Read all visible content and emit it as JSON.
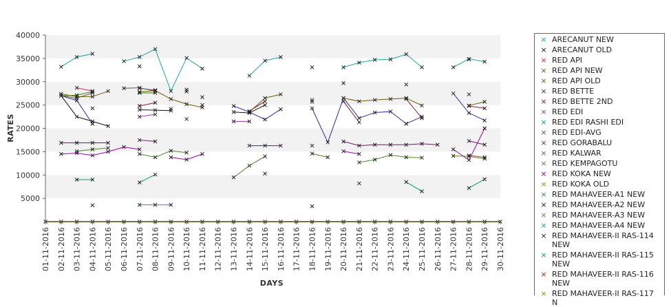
{
  "chart_data": {
    "type": "line",
    "title": "",
    "xlabel": "DAYS",
    "ylabel": "RATES",
    "ylim": [
      0,
      40000
    ],
    "y_ticks": [
      5000,
      10000,
      15000,
      20000,
      25000,
      30000,
      35000,
      40000
    ],
    "grid": "alternating horizontal bands",
    "legend_position": "right",
    "categories": [
      "01-11-2016",
      "02-11-2016",
      "03-11-2016",
      "04-11-2016",
      "05-11-2016",
      "06-11-2016",
      "07-11-2016",
      "08-11-2016",
      "09-11-2016",
      "10-11-2016",
      "11-11-2016",
      "12-11-2016",
      "13-11-2016",
      "14-11-2016",
      "15-11-2016",
      "16-11-2016",
      "17-11-2016",
      "18-11-2016",
      "19-11-2016",
      "20-11-2016",
      "21-11-2016",
      "22-11-2016",
      "23-11-2016",
      "24-11-2016",
      "25-11-2016",
      "26-11-2016",
      "27-11-2016",
      "28-11-2016",
      "29-11-2016",
      "30-11-2016"
    ],
    "series": [
      {
        "name": "ARECANUT NEW",
        "color": "#1aa3a3",
        "values": [
          null,
          33200,
          35300,
          36000,
          null,
          34400,
          35300,
          37000,
          28000,
          35100,
          32800,
          null,
          null,
          31300,
          34500,
          35300,
          null,
          33100,
          null,
          33100,
          34100,
          34700,
          34800,
          35900,
          33100,
          null,
          33100,
          34900,
          34300,
          null
        ]
      },
      {
        "name": "ARECANUT OLD",
        "color": "#111111",
        "values": [
          null,
          27000,
          22500,
          21500,
          20500,
          null,
          24000,
          23900,
          23800,
          null,
          null,
          null,
          23500,
          23300,
          25000,
          null,
          null,
          null,
          null,
          null,
          null,
          null,
          null,
          null,
          null,
          null,
          null,
          null,
          null,
          null
        ]
      },
      {
        "name": "RED API",
        "color": "#d81b60",
        "values": [
          null,
          null,
          28700,
          28000,
          null,
          null,
          28600,
          28200,
          null,
          28300,
          null,
          null,
          null,
          null,
          null,
          null,
          null,
          null,
          null,
          null,
          null,
          null,
          null,
          29400,
          null,
          null,
          null,
          27300,
          null,
          null
        ]
      },
      {
        "name": "RED API NEW",
        "color": "#6b5a00",
        "values": [
          null,
          27400,
          26800,
          26800,
          28000,
          null,
          27800,
          28100,
          26300,
          25200,
          24500,
          null,
          null,
          23500,
          26500,
          27300,
          null,
          26100,
          null,
          26500,
          25800,
          26100,
          26300,
          26500,
          24900,
          null,
          null,
          24900,
          25700,
          null
        ]
      },
      {
        "name": "RED API OLD",
        "color": "#3a7a00",
        "values": [
          null,
          27000,
          27100,
          27900,
          null,
          null,
          27600,
          27600,
          null,
          null,
          null,
          null,
          null,
          null,
          null,
          null,
          null,
          null,
          null,
          null,
          null,
          null,
          null,
          null,
          null,
          null,
          null,
          null,
          null,
          null
        ]
      },
      {
        "name": "RED BETTE",
        "color": "#2a2aa8",
        "values": [
          null,
          27000,
          26000,
          21000,
          null,
          null,
          24800,
          null,
          24200,
          null,
          26700,
          null,
          24800,
          23500,
          21900,
          24100,
          null,
          24300,
          17000,
          26500,
          22200,
          23400,
          23600,
          21000,
          22500,
          null,
          27500,
          23300,
          21700,
          null
        ]
      },
      {
        "name": "RED BETTE 2ND",
        "color": "#8a1c2b",
        "values": [
          null,
          null,
          null,
          24300,
          null,
          null,
          24800,
          25500,
          null,
          null,
          25000,
          null,
          null,
          23700,
          25800,
          null,
          null,
          25700,
          null,
          25800,
          21300,
          null,
          null,
          26300,
          22200,
          null,
          null,
          24800,
          24300,
          null
        ]
      },
      {
        "name": "RED EDI",
        "color": "#9a2fa8",
        "values": [
          null,
          null,
          null,
          21000,
          null,
          null,
          22500,
          23000,
          null,
          22000,
          null,
          null,
          21500,
          21500,
          null,
          null,
          null,
          null,
          null,
          null,
          null,
          null,
          null,
          21000,
          null,
          null,
          null,
          null,
          20000,
          null
        ]
      },
      {
        "name": "RED EDI RASHI EDI",
        "color": "#00a0a0",
        "values": [
          null,
          null,
          null,
          null,
          null,
          null,
          33300,
          null,
          null,
          null,
          null,
          null,
          null,
          null,
          null,
          null,
          null,
          null,
          null,
          29700,
          null,
          null,
          null,
          null,
          null,
          null,
          null,
          34800,
          null,
          null
        ]
      },
      {
        "name": "RED EDI-AVG",
        "color": "#555555",
        "values": [
          null,
          27000,
          26500,
          27600,
          null,
          28600,
          28700,
          28000,
          null,
          27900,
          null,
          null,
          null,
          null,
          null,
          null,
          null,
          null,
          null,
          null,
          null,
          null,
          null,
          null,
          null,
          null,
          null,
          null,
          null,
          null
        ]
      },
      {
        "name": "RED GORABALU",
        "color": "#6a1a60",
        "values": [
          null,
          16900,
          16900,
          16900,
          16900,
          null,
          17500,
          17200,
          null,
          null,
          null,
          null,
          null,
          16300,
          16300,
          16300,
          null,
          16300,
          null,
          17200,
          16300,
          16500,
          16500,
          16500,
          16700,
          16500,
          null,
          17300,
          16500,
          null
        ]
      },
      {
        "name": "RED KALWAR",
        "color": "#a0522d",
        "values": [
          null,
          null,
          null,
          null,
          null,
          null,
          null,
          null,
          null,
          null,
          null,
          null,
          null,
          null,
          null,
          null,
          null,
          null,
          null,
          null,
          null,
          null,
          null,
          null,
          null,
          null,
          null,
          14200,
          13800,
          null
        ]
      },
      {
        "name": "RED KEMPAGOTU",
        "color": "#4b8a2a",
        "values": [
          null,
          null,
          15100,
          15500,
          15800,
          null,
          14500,
          13800,
          15200,
          14800,
          null,
          null,
          9500,
          12000,
          14000,
          null,
          null,
          14600,
          13800,
          null,
          12700,
          13300,
          14300,
          13800,
          13700,
          null,
          14100,
          14000,
          13500,
          null
        ]
      },
      {
        "name": "RED KOKA NEW",
        "color": "#a000a0",
        "values": [
          null,
          14500,
          14700,
          14200,
          15000,
          16000,
          15500,
          null,
          13800,
          13300,
          14500,
          null,
          null,
          null,
          null,
          null,
          null,
          null,
          null,
          15100,
          14500,
          null,
          null,
          null,
          null,
          null,
          15500,
          13200,
          20000,
          null
        ]
      },
      {
        "name": "RED KOKA OLD",
        "color": "#66aa00",
        "values": [
          null,
          null,
          null,
          null,
          null,
          null,
          null,
          null,
          null,
          null,
          null,
          null,
          null,
          null,
          null,
          null,
          null,
          null,
          null,
          null,
          null,
          null,
          null,
          null,
          null,
          null,
          null,
          null,
          null,
          null
        ]
      },
      {
        "name": "RED MAHAVEER-A1 NEW",
        "color": "#2e8b57",
        "values": [
          null,
          null,
          null,
          null,
          null,
          null,
          null,
          null,
          null,
          null,
          null,
          null,
          null,
          null,
          null,
          null,
          null,
          null,
          null,
          null,
          null,
          null,
          null,
          null,
          null,
          null,
          null,
          null,
          null,
          null
        ]
      },
      {
        "name": "RED MAHAVEER-A2 NEW",
        "color": "#2a0a60",
        "values": [
          null,
          null,
          null,
          null,
          null,
          null,
          null,
          null,
          null,
          null,
          null,
          null,
          null,
          null,
          null,
          null,
          null,
          null,
          null,
          null,
          null,
          null,
          null,
          null,
          null,
          null,
          null,
          null,
          null,
          null
        ]
      },
      {
        "name": "RED MAHAVEER-A3 NEW",
        "color": "#cc5533",
        "values": [
          null,
          null,
          null,
          null,
          null,
          null,
          null,
          null,
          null,
          null,
          null,
          null,
          null,
          null,
          null,
          null,
          null,
          null,
          null,
          null,
          null,
          null,
          null,
          null,
          null,
          null,
          null,
          null,
          null,
          null
        ]
      },
      {
        "name": "RED MAHAVEER-A4 NEW",
        "color": "#1a8fc8",
        "values": [
          null,
          null,
          null,
          3500,
          null,
          null,
          3600,
          3600,
          3600,
          null,
          null,
          null,
          null,
          null,
          null,
          null,
          null,
          3300,
          null,
          null,
          null,
          null,
          null,
          null,
          null,
          null,
          null,
          null,
          null,
          null
        ]
      },
      {
        "name": "RED MAHAVEER-II RAS-114 NEW",
        "color": "#003300",
        "values": [
          null,
          null,
          null,
          null,
          null,
          null,
          null,
          null,
          null,
          null,
          null,
          null,
          null,
          null,
          null,
          null,
          null,
          null,
          null,
          null,
          null,
          null,
          null,
          null,
          null,
          null,
          null,
          null,
          null,
          null
        ]
      },
      {
        "name": "RED MAHAVEER-II RAS-115 NEW",
        "color": "#00a060",
        "values": [
          null,
          null,
          9000,
          9000,
          null,
          null,
          8400,
          10100,
          null,
          null,
          null,
          null,
          null,
          null,
          10300,
          null,
          null,
          null,
          null,
          null,
          8200,
          null,
          null,
          8500,
          6500,
          null,
          null,
          7200,
          9100,
          null
        ]
      },
      {
        "name": "RED MAHAVEER-II RAS-116 NEW",
        "color": "#aa2200",
        "values": [
          null,
          null,
          null,
          null,
          null,
          null,
          null,
          null,
          null,
          null,
          null,
          null,
          null,
          null,
          null,
          null,
          null,
          null,
          null,
          null,
          null,
          null,
          null,
          null,
          null,
          null,
          null,
          null,
          null,
          null
        ]
      },
      {
        "name": "RED MAHAVEER-II RAS-117 N",
        "color": "#8a8a00",
        "values": [
          0,
          0,
          0,
          0,
          0,
          0,
          0,
          0,
          0,
          0,
          0,
          0,
          0,
          0,
          0,
          0,
          0,
          0,
          0,
          0,
          0,
          0,
          0,
          0,
          0,
          0,
          0,
          0,
          0,
          0
        ]
      }
    ]
  }
}
